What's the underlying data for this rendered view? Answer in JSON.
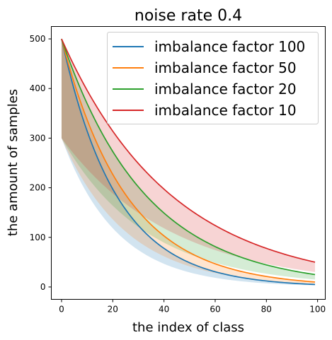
{
  "chart_data": {
    "type": "line",
    "title": "noise rate 0.4",
    "xlabel": "the index of class",
    "ylabel": "the amount of samples",
    "xlim": [
      -4,
      103
    ],
    "ylim": [
      -25,
      525
    ],
    "xticks": [
      0,
      20,
      40,
      60,
      80,
      100
    ],
    "yticks": [
      0,
      100,
      200,
      300,
      400,
      500
    ],
    "xtick_labels": [
      "0",
      "20",
      "40",
      "60",
      "80",
      "100"
    ],
    "ytick_labels": [
      "0",
      "100",
      "200",
      "300",
      "400",
      "500"
    ],
    "grid": false,
    "legend_position": "top-right",
    "n_classes": 100,
    "clean_start": 300,
    "series": [
      {
        "name": "imbalance factor 100",
        "color": "#1f77b4",
        "start": 500,
        "end": 5,
        "noisy_band_end": 3
      },
      {
        "name": "imbalance factor 50",
        "color": "#ff7f0e",
        "start": 500,
        "end": 10,
        "noisy_band_end": 6
      },
      {
        "name": "imbalance factor 20",
        "color": "#2ca02c",
        "start": 500,
        "end": 25,
        "noisy_band_end": 15
      },
      {
        "name": "imbalance factor 10",
        "color": "#d62728",
        "start": 500,
        "end": 50,
        "noisy_band_end": 30
      }
    ]
  }
}
